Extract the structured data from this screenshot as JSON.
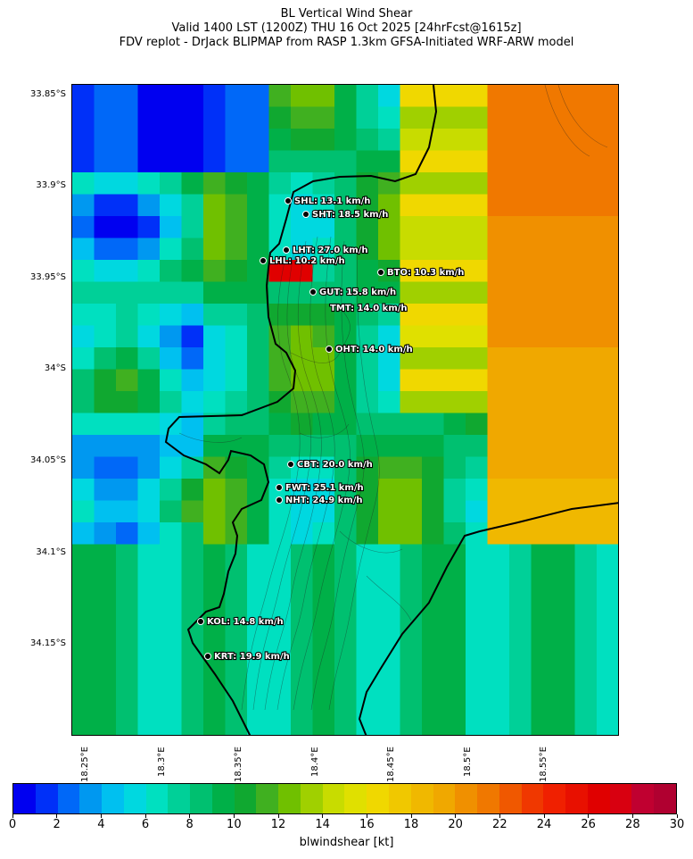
{
  "title": {
    "line1": "BL Vertical Wind Shear",
    "line2": "Valid 1400 LST (1200Z) THU 16 Oct 2025 [24hrFcst@1615z]",
    "line3": "FDV replot - DrJack BLIPMAP from RASP 1.3km GFSA-Initiated WRF-ARW model"
  },
  "lat_labels": [
    "33.85°S",
    "33.9°S",
    "33.95°S",
    "34°S",
    "34.05°S",
    "34.1°S",
    "34.15°S"
  ],
  "lon_labels": [
    "18.25°E",
    "18.3°E",
    "18.35°E",
    "18.4°E",
    "18.45°E",
    "18.5°E",
    "18.55°E"
  ],
  "stations": [
    {
      "code": "SHL",
      "label": "SHL: 13.1 km/h"
    },
    {
      "code": "SHT",
      "label": "SHT: 18.5 km/h"
    },
    {
      "code": "LHT",
      "label": "LHT: 27.0 km/h"
    },
    {
      "code": "LHL",
      "label": "LHL: 10.2 km/h"
    },
    {
      "code": "BTO",
      "label": "BTO: 10.3 km/h"
    },
    {
      "code": "GUT",
      "label": "GUT: 15.8 km/h"
    },
    {
      "code": "TMT",
      "label": "TMT: 14.0 km/h"
    },
    {
      "code": "OHT",
      "label": "OHT: 14.0 km/h"
    },
    {
      "code": "CBT",
      "label": "CBT: 20.0 km/h"
    },
    {
      "code": "FWT",
      "label": "FWT: 25.1 km/h"
    },
    {
      "code": "NHT",
      "label": "NHT: 24.9 km/h"
    },
    {
      "code": "KOL",
      "label": "KOL: 14.8 km/h"
    },
    {
      "code": "KRT",
      "label": "KRT: 19.9 km/h"
    }
  ],
  "colorbar": {
    "title": "blwindshear [kt]",
    "ticks": [
      "0",
      "2",
      "4",
      "6",
      "8",
      "10",
      "12",
      "14",
      "16",
      "18",
      "20",
      "22",
      "24",
      "26",
      "28",
      "30"
    ],
    "colors": [
      "#0000f0",
      "#0030f8",
      "#0068f8",
      "#0098f0",
      "#00c0f0",
      "#00d8e0",
      "#00e0c0",
      "#00d098",
      "#00c070",
      "#00b048",
      "#10a830",
      "#40b020",
      "#70c000",
      "#a0d000",
      "#c8dc00",
      "#e0e000",
      "#f0d800",
      "#f0c800",
      "#f0b800",
      "#f0a800",
      "#f09000",
      "#f07800",
      "#f05800",
      "#f03800",
      "#f02000",
      "#e81000",
      "#e00000",
      "#d80010",
      "#c00030",
      "#b00030"
    ]
  }
}
